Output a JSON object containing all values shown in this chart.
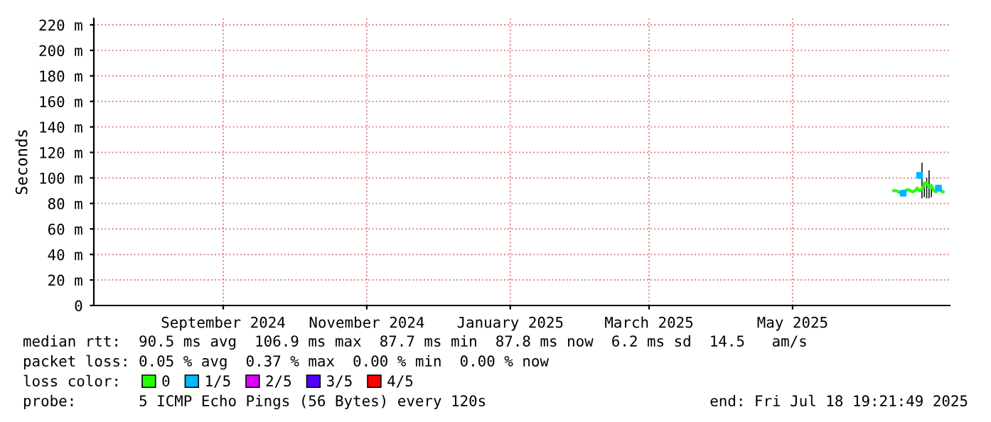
{
  "chart_data": {
    "type": "line",
    "ylabel": "Seconds",
    "legend_title": "loss color:",
    "legend": "bottom",
    "grid": true,
    "xlim": [
      "2024-07-20",
      "2025-07-18T19:21"
    ],
    "xticks": [
      {
        "value": "2024-09-13",
        "label": "September 2024"
      },
      {
        "value": "2024-11-13",
        "label": "November 2024"
      },
      {
        "value": "2025-01-13",
        "label": "January 2025"
      },
      {
        "value": "2025-03-13",
        "label": "March 2025"
      },
      {
        "value": "2025-05-13",
        "label": "May 2025"
      }
    ],
    "ylim": [
      0,
      225
    ],
    "yticks": [
      {
        "value": 0,
        "label": "0"
      },
      {
        "value": 20,
        "label": "20 m"
      },
      {
        "value": 40,
        "label": "40 m"
      },
      {
        "value": 60,
        "label": "60 m"
      },
      {
        "value": 80,
        "label": "80 m"
      },
      {
        "value": 100,
        "label": "100 m"
      },
      {
        "value": 120,
        "label": "120 m"
      },
      {
        "value": 140,
        "label": "140 m"
      },
      {
        "value": 160,
        "label": "160 m"
      },
      {
        "value": 180,
        "label": "180 m"
      },
      {
        "value": 200,
        "label": "200 m"
      },
      {
        "value": 220,
        "label": "220 m"
      }
    ],
    "series": [
      {
        "type": "bar",
        "color": "#1a1a1a",
        "x": [
          "2025-07-07",
          "2025-07-08",
          "2025-07-09",
          "2025-07-10",
          "2025-07-11"
        ],
        "base": [
          84,
          85,
          84,
          84,
          85
        ],
        "values": [
          28,
          12,
          16,
          22,
          10
        ]
      },
      {
        "name": "0",
        "color": "#26ff00",
        "x": [
          "2025-06-25",
          "2025-06-26",
          "2025-06-27",
          "2025-06-28",
          "2025-06-29",
          "2025-06-30",
          "2025-07-01",
          "2025-07-02",
          "2025-07-03",
          "2025-07-04",
          "2025-07-05",
          "2025-07-06",
          "2025-07-07",
          "2025-07-08",
          "2025-07-09",
          "2025-07-10",
          "2025-07-11",
          "2025-07-12",
          "2025-07-13",
          "2025-07-14",
          "2025-07-15",
          "2025-07-16"
        ],
        "values": [
          90,
          90,
          89,
          88,
          89,
          90,
          91,
          90,
          89,
          90,
          92,
          90,
          91,
          95,
          96,
          93,
          94,
          90,
          89,
          92,
          90,
          89
        ]
      },
      {
        "name": "1/5",
        "type": "scatter",
        "color": "#00b8ff",
        "x": [
          "2025-06-29",
          "2025-07-06",
          "2025-07-14"
        ],
        "values": [
          88,
          102,
          92
        ]
      },
      {
        "name": "2/5",
        "type": "scatter",
        "color": "#dd00ff"
      },
      {
        "name": "3/5",
        "type": "scatter",
        "color": "#5500ff"
      },
      {
        "name": "4/5",
        "type": "scatter",
        "color": "#ff0000"
      }
    ],
    "annotations": [
      "median rtt:  90.5 ms avg  106.9 ms max  87.7 ms min  87.8 ms now  6.2 ms sd  14.5   am/s",
      "packet loss: 0.05 % avg  0.37 % max  0.00 % min  0.00 % now",
      "probe:       5 ICMP Echo Pings (56 Bytes) every 120s",
      "end: Fri Jul 18 19:21:49 2025"
    ]
  }
}
